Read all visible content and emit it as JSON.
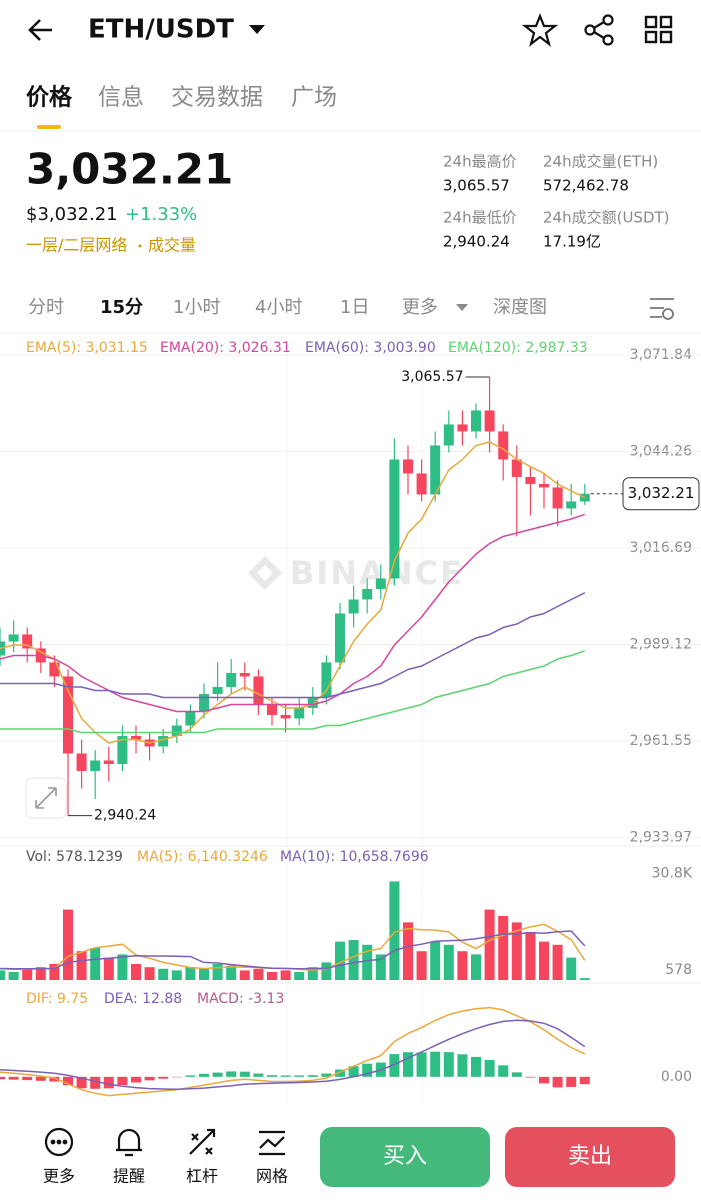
{
  "header": {
    "pair": "ETH/USDT"
  },
  "tabs": [
    "价格",
    "信息",
    "交易数据",
    "广场"
  ],
  "active_tab": 0,
  "price": {
    "last": "3,032.21",
    "usd": "$3,032.21",
    "change": "+1.33%",
    "tags": [
      "一层/二层网络",
      "成交量"
    ]
  },
  "stats": [
    {
      "label": "24h最高价",
      "value": "3,065.57"
    },
    {
      "label": "24h成交量(ETH)",
      "value": "572,462.78"
    },
    {
      "label": "24h最低价",
      "value": "2,940.24"
    },
    {
      "label": "24h成交额(USDT)",
      "value": "17.19亿"
    }
  ],
  "intervals": [
    "分时",
    "15分",
    "1小时",
    "4小时",
    "1日",
    "更多",
    "深度图"
  ],
  "active_interval": 1,
  "watermark": "BINANCE",
  "nav": [
    "更多",
    "提醒",
    "杠杆",
    "网格"
  ],
  "buttons": [
    "买入",
    "卖出"
  ],
  "chart_data": [
    {
      "type": "candlestick",
      "up_color": "#2ebd85",
      "down_color": "#f6465d",
      "open": [
        2986,
        2990,
        2992,
        2988,
        2984,
        2980,
        2958,
        2953,
        2956,
        2955,
        2963,
        2962,
        2960,
        2963,
        2966,
        2970,
        2975,
        2977,
        2981,
        2980,
        2972,
        2969,
        2968,
        2971,
        2974,
        2984,
        2998,
        3002,
        3005,
        3008,
        3042,
        3038,
        3032,
        3046,
        3052,
        3050,
        3056,
        3050,
        3042,
        3037,
        3035,
        3034,
        3028,
        3030
      ],
      "high": [
        2994,
        2996,
        2994,
        2990,
        2986,
        2982,
        2962,
        2959,
        2960,
        2966,
        2966,
        2964,
        2965,
        2968,
        2972,
        2978,
        2984,
        2985,
        2984,
        2982,
        2974,
        2972,
        2974,
        2977,
        2986,
        3001,
        3006,
        3008,
        3012,
        3048,
        3046,
        3042,
        3050,
        3056,
        3056,
        3058,
        3065.57,
        3052,
        3046,
        3040,
        3038,
        3036,
        3035,
        3035
      ],
      "low": [
        2983,
        2987,
        2984,
        2981,
        2977,
        2940.24,
        2948,
        2945,
        2950,
        2953,
        2958,
        2956,
        2958,
        2961,
        2964,
        2968,
        2973,
        2975,
        2976,
        2969,
        2966,
        2964,
        2966,
        2969,
        2972,
        2982,
        2994,
        2998,
        3002,
        3006,
        3032,
        3030,
        3030,
        3044,
        3046,
        3048,
        3044,
        3036,
        3020,
        3026,
        3028,
        3023,
        3026,
        3029
      ],
      "close": [
        2990,
        2992,
        2988,
        2984,
        2980,
        2958,
        2953,
        2956,
        2955,
        2963,
        2962,
        2960,
        2963,
        2966,
        2970,
        2975,
        2977,
        2981,
        2980,
        2972,
        2969,
        2968,
        2971,
        2974,
        2984,
        2998,
        3002,
        3005,
        3008,
        3042,
        3038,
        3032,
        3046,
        3052,
        3050,
        3056,
        3050,
        3042,
        3037,
        3035,
        3034,
        3028,
        3030,
        3032.21
      ],
      "max_label": "3,065.57",
      "min_label": "2,940.24",
      "last_label": "3,032.21",
      "series": [
        {
          "name": "EMA(5): 3,031.15",
          "color": "#e8a93a",
          "values": [
            2988,
            2989,
            2989,
            2987,
            2985,
            2976,
            2968,
            2964,
            2961,
            2962,
            2962,
            2961,
            2962,
            2963,
            2965,
            2969,
            2972,
            2975,
            2977,
            2975,
            2973,
            2971,
            2971,
            2972,
            2976,
            2983,
            2990,
            2995,
            2999,
            3013,
            3021,
            3025,
            3032,
            3039,
            3042,
            3046,
            3047,
            3045,
            3042,
            3040,
            3038,
            3035,
            3033,
            3031.15
          ]
        },
        {
          "name": "EMA(20): 3,026.31",
          "color": "#d6459e",
          "values": [
            2985,
            2986,
            2986,
            2986,
            2985,
            2983,
            2980,
            2978,
            2976,
            2974,
            2973,
            2972,
            2971,
            2970,
            2970,
            2970,
            2971,
            2972,
            2972,
            2972,
            2972,
            2972,
            2972,
            2972,
            2973,
            2975,
            2978,
            2980,
            2983,
            2989,
            2993,
            2997,
            3002,
            3007,
            3011,
            3015,
            3018,
            3020,
            3021,
            3022,
            3023,
            3024,
            3025,
            3026.31
          ]
        },
        {
          "name": "EMA(60): 3,003.90",
          "color": "#7b5fb5",
          "values": [
            2978,
            2978,
            2978,
            2978,
            2978,
            2977,
            2977,
            2976,
            2976,
            2975,
            2975,
            2975,
            2974,
            2974,
            2974,
            2974,
            2974,
            2974,
            2974,
            2974,
            2974,
            2974,
            2974,
            2974,
            2974,
            2975,
            2976,
            2977,
            2978,
            2980,
            2982,
            2983,
            2985,
            2987,
            2989,
            2991,
            2992,
            2994,
            2995,
            2997,
            2998,
            3000,
            3002,
            3003.9
          ]
        },
        {
          "name": "EMA(120): 2,987.33",
          "color": "#5ed36f",
          "values": [
            2965,
            2965,
            2965,
            2965,
            2965,
            2965,
            2964,
            2964,
            2964,
            2964,
            2964,
            2964,
            2964,
            2964,
            2964,
            2964,
            2965,
            2965,
            2965,
            2965,
            2965,
            2965,
            2965,
            2965,
            2966,
            2966,
            2967,
            2968,
            2969,
            2970,
            2971,
            2972,
            2974,
            2975,
            2976,
            2977,
            2978,
            2980,
            2981,
            2982,
            2983,
            2985,
            2986,
            2987.33
          ]
        }
      ],
      "ylim": [
        2931.85,
        3076.13
      ],
      "yticks": [
        {
          "value": 3071.84,
          "label": "3,071.84"
        },
        {
          "value": 3044.26,
          "label": "3,044.26"
        },
        {
          "value": 3016.69,
          "label": "3,016.69"
        },
        {
          "value": 2989.12,
          "label": "2,989.12"
        },
        {
          "value": 2961.55,
          "label": "2,961.55"
        },
        {
          "value": 2933.97,
          "label": "2,933.97"
        }
      ],
      "grid": true
    },
    {
      "type": "bar",
      "series": [
        {
          "name": "Vol: 578.1239",
          "color": "#555555",
          "values": [
            3000,
            2500,
            3500,
            4000,
            5000,
            22000,
            9000,
            10000,
            7000,
            8000,
            5000,
            4000,
            3500,
            3000,
            4000,
            3500,
            5000,
            4500,
            3000,
            3500,
            2500,
            3000,
            2500,
            4000,
            5500,
            12000,
            12500,
            11000,
            8000,
            30800,
            18000,
            9000,
            12000,
            11000,
            9000,
            8000,
            22000,
            20000,
            18000,
            15000,
            12000,
            11000,
            7000,
            578.1239
          ]
        },
        {
          "name": "MA(5): 6,140.3246",
          "color": "#e8a93a",
          "values": [
            3500,
            3300,
            3400,
            3500,
            3600,
            7400,
            8700,
            10100,
            10600,
            11200,
            7800,
            6800,
            5500,
            4700,
            3900,
            3600,
            3800,
            4100,
            4000,
            3900,
            3700,
            3700,
            3300,
            3100,
            3500,
            5400,
            7300,
            9000,
            9800,
            14900,
            16100,
            15700,
            15600,
            15000,
            11800,
            9800,
            12400,
            14000,
            15400,
            16600,
            17400,
            15200,
            12600,
            6140.3246
          ]
        },
        {
          "name": "MA(10): 10,658.7696",
          "color": "#7b5fb5",
          "values": [
            3600,
            3500,
            3500,
            3500,
            3600,
            5500,
            6000,
            6500,
            6800,
            7200,
            7600,
            7500,
            7500,
            7400,
            7300,
            5500,
            5300,
            4800,
            4400,
            4000,
            3700,
            3600,
            3500,
            3600,
            3700,
            4600,
            5400,
            6000,
            6500,
            9200,
            10500,
            11200,
            12100,
            12300,
            12400,
            12900,
            13600,
            14300,
            14400,
            14800,
            14600,
            15100,
            15300,
            10658.7696
          ]
        }
      ],
      "ylim": [
        0,
        35000
      ],
      "yticks": [
        {
          "value": 30800,
          "label": "30.8K"
        },
        578
      ]
    },
    {
      "type": "macd",
      "series": [
        {
          "name": "DIF: 9.75",
          "color": "#e8a93a",
          "values": [
            2,
            1.5,
            1,
            0.3,
            -0.5,
            -3,
            -5.5,
            -7,
            -8,
            -7.5,
            -7,
            -6.5,
            -6,
            -5.5,
            -4.5,
            -3.5,
            -2.5,
            -1.5,
            -1,
            -1.5,
            -2,
            -2,
            -1.8,
            -1.5,
            -0.5,
            2,
            4.5,
            7,
            9,
            15,
            18.5,
            21,
            24,
            26.5,
            28,
            29,
            29.5,
            28.5,
            26,
            23.5,
            20,
            16,
            12.5,
            9.75
          ]
        },
        {
          "name": "DEA: 12.88",
          "color": "#7b5fb5",
          "values": [
            3,
            2.7,
            2.4,
            2,
            1.5,
            0.6,
            -0.6,
            -1.9,
            -3.1,
            -4,
            -4.6,
            -5,
            -5.2,
            -5.3,
            -5.1,
            -4.8,
            -4.3,
            -3.8,
            -3.2,
            -2.9,
            -2.7,
            -2.6,
            -2.4,
            -2.2,
            -1.9,
            -1.1,
            0,
            1.4,
            2.9,
            5.3,
            8,
            10.6,
            13.3,
            16,
            18.4,
            20.5,
            22.3,
            23.6,
            24.1,
            23.8,
            22.8,
            20.5,
            16.8,
            12.88
          ]
        },
        {
          "name": "MACD: -3.13",
          "color": "#b35a8c",
          "values": [
            -1,
            -1.2,
            -1.4,
            -1.7,
            -2,
            -3.6,
            -4.9,
            -5.1,
            -4.9,
            -3.5,
            -2.4,
            -1.5,
            -0.8,
            -0.2,
            0.6,
            1.3,
            1.8,
            2.3,
            2.2,
            1.4,
            0.7,
            0.6,
            0.6,
            0.7,
            1.4,
            3.1,
            4.5,
            5.6,
            6.1,
            9.7,
            10.5,
            10.4,
            10.7,
            10.5,
            9.6,
            8.5,
            7.2,
            4.9,
            1.9,
            -0.3,
            -2.8,
            -4.5,
            -4.3,
            -3.13
          ]
        }
      ],
      "ylim": [
        -12,
        37
      ],
      "yticks": [
        {
          "value": 0,
          "label": "0.00"
        }
      ]
    }
  ]
}
